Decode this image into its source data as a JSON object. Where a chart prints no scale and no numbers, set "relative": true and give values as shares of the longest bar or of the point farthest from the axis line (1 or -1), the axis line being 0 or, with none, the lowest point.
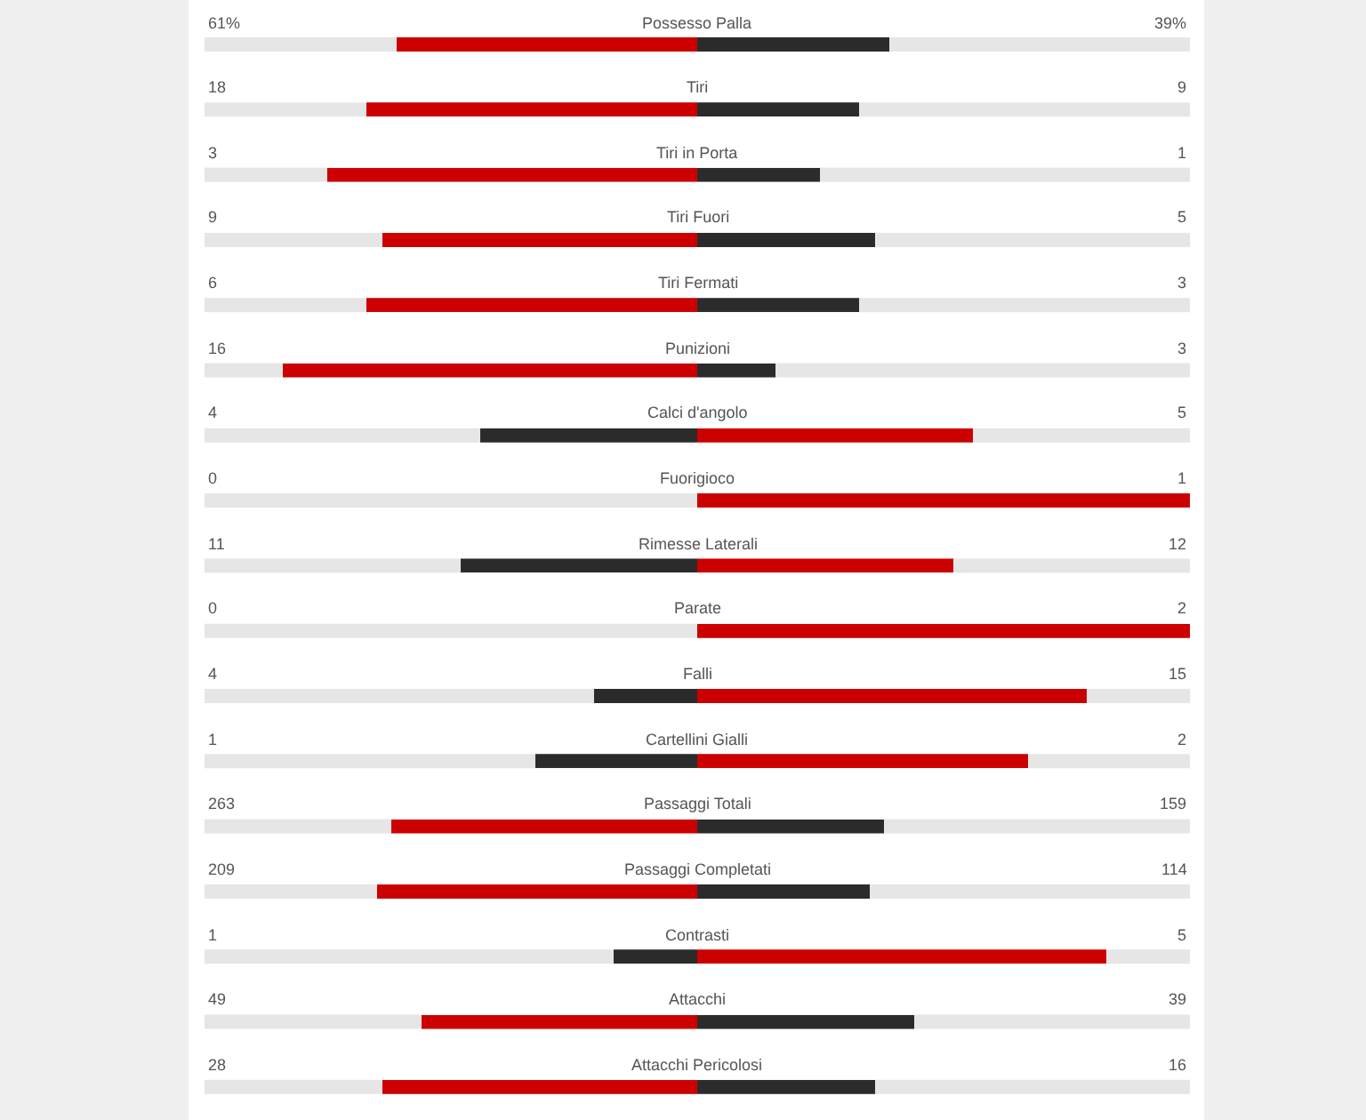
{
  "chart_data": {
    "type": "bar",
    "orientation": "horizontal",
    "relative": true,
    "stacked": true,
    "categories": [
      "Possesso Palla",
      "Tiri",
      "Tiri in Porta",
      "Tiri Fuori",
      "Tiri Fermati",
      "Punizioni",
      "Calci d'angolo",
      "Fuorigioco",
      "Rimesse Laterali",
      "Parate",
      "Falli",
      "Cartellini Gialli",
      "Passaggi Totali",
      "Passaggi Completati",
      "Contrasti",
      "Attacchi",
      "Attacchi Pericolosi"
    ],
    "series": [
      {
        "colors": [
          "#cc0000",
          "#cc0000",
          "#cc0000",
          "#cc0000",
          "#cc0000",
          "#cc0000",
          "#2b2b2b",
          "#2b2b2b",
          "#2b2b2b",
          "#2b2b2b",
          "#2b2b2b",
          "#2b2b2b",
          "#cc0000",
          "#cc0000",
          "#2b2b2b",
          "#cc0000",
          "#cc0000"
        ],
        "values": [
          -0.61,
          -0.67,
          -0.75,
          -0.64,
          -0.67,
          -0.84,
          -0.44,
          0,
          -0.48,
          0,
          -0.21,
          -0.33,
          -0.62,
          -0.65,
          -0.17,
          -0.56,
          -0.64
        ]
      },
      {
        "colors": [
          "#2b2b2b",
          "#2b2b2b",
          "#2b2b2b",
          "#2b2b2b",
          "#2b2b2b",
          "#2b2b2b",
          "#cc0000",
          "#cc0000",
          "#cc0000",
          "#cc0000",
          "#cc0000",
          "#cc0000",
          "#2b2b2b",
          "#2b2b2b",
          "#cc0000",
          "#2b2b2b",
          "#2b2b2b"
        ],
        "values": [
          0.39,
          0.33,
          0.25,
          0.36,
          0.33,
          0.16,
          0.56,
          1,
          0.52,
          1,
          0.79,
          0.67,
          0.38,
          0.35,
          0.83,
          0.44,
          0.36
        ]
      }
    ],
    "annotations": [
      "61%",
      "39%",
      "18",
      "9",
      "3",
      "1",
      "9",
      "5",
      "6",
      "3",
      "16",
      "3",
      "4",
      "5",
      "0",
      "1",
      "11",
      "12",
      "0",
      "2",
      "4",
      "15",
      "1",
      "2",
      "263",
      "159",
      "209",
      "114",
      "1",
      "5",
      "49",
      "39",
      "28",
      "16"
    ]
  }
}
